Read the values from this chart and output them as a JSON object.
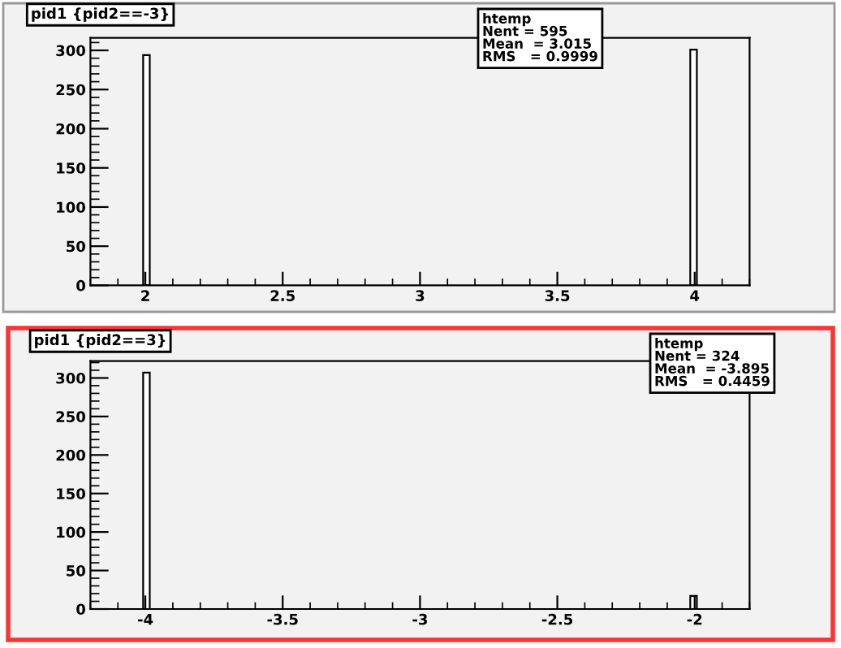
{
  "chart_data": [
    {
      "type": "histogram",
      "title": "pid1 {pid2==-3}",
      "bins": [
        1.992,
        2.016,
        3.984,
        4.008
      ],
      "values": [
        294,
        0,
        301
      ],
      "color": "#ffffff",
      "xlim": [
        1.8,
        4.2
      ],
      "ylim": [
        0,
        316
      ],
      "xticks": [
        2,
        2.5,
        3,
        3.5,
        4
      ],
      "yticks": [
        0,
        50,
        100,
        150,
        200,
        250,
        300
      ],
      "grid": false,
      "annotations": [
        "htemp",
        "Nent = 595",
        "Mean  = 3.015",
        "RMS   = 0.9999"
      ]
    },
    {
      "type": "histogram",
      "title": "pid1 {pid2==3}",
      "bins": [
        -4.008,
        -3.984,
        -2.016,
        -1.992
      ],
      "values": [
        307,
        0,
        17
      ],
      "color": "#ffffff",
      "xlim": [
        -4.2,
        -1.8
      ],
      "ylim": [
        0,
        322
      ],
      "xticks": [
        -4,
        -3.5,
        -3,
        -2.5,
        -2
      ],
      "yticks": [
        0,
        50,
        100,
        150,
        200,
        250,
        300
      ],
      "grid": false,
      "annotations": [
        "htemp",
        "Nent = 324",
        "Mean  = -3.895",
        "RMS   = 0.4459"
      ]
    }
  ]
}
